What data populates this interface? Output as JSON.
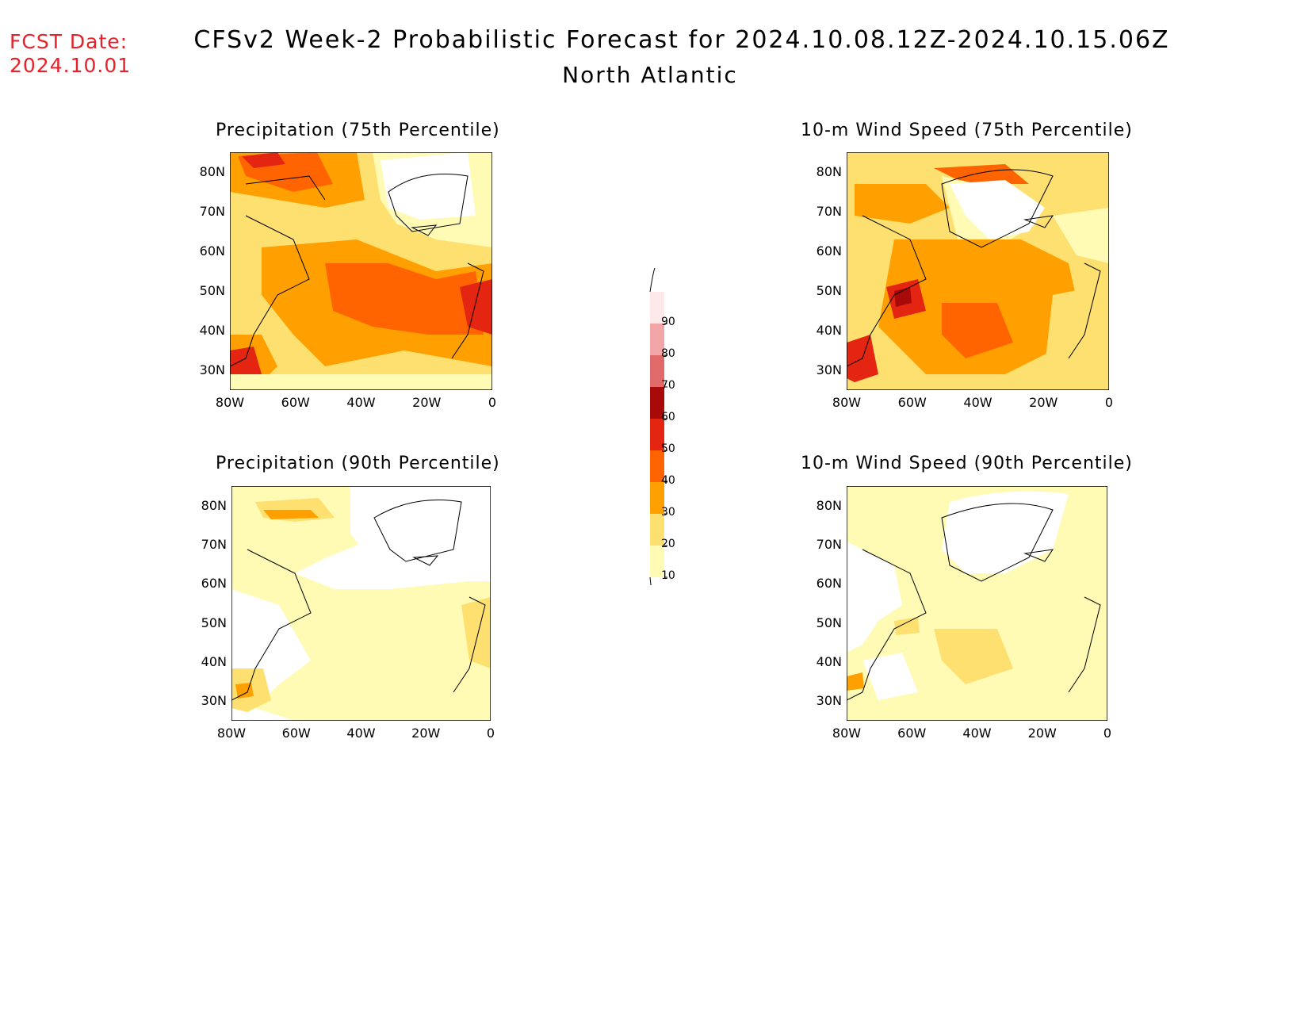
{
  "header": {
    "fcst_label": "FCST Date:",
    "fcst_date": "2024.10.01",
    "title": "CFSv2 Week-2 Probabilistic Forecast for 2024.10.08.12Z-2024.10.15.06Z",
    "region": "North Atlantic"
  },
  "panels": [
    {
      "title": "Precipitation (75th Percentile)"
    },
    {
      "title": "10-m Wind Speed (75th Percentile)"
    },
    {
      "title": "Precipitation (90th Percentile)"
    },
    {
      "title": "10-m Wind Speed (90th Percentile)"
    }
  ],
  "axes": {
    "lat_labels": [
      "80N",
      "70N",
      "60N",
      "50N",
      "40N",
      "30N"
    ],
    "lon_labels": [
      "80W",
      "60W",
      "40W",
      "20W",
      "0"
    ]
  },
  "legend": {
    "labels": [
      "90",
      "80",
      "70",
      "60",
      "50",
      "40",
      "30",
      "20",
      "10"
    ],
    "colors": [
      "#fde8ea",
      "#f3a6a8",
      "#e06a6a",
      "#a80a0a",
      "#e32512",
      "#ff6400",
      "#ffa000",
      "#fde070",
      "#fffab4"
    ]
  },
  "colors": {
    "c10": "#fffab4",
    "c20": "#fde070",
    "c30": "#ffa000",
    "c40": "#ff6400",
    "c50": "#e32512",
    "fcst_text": "#e8202a"
  }
}
